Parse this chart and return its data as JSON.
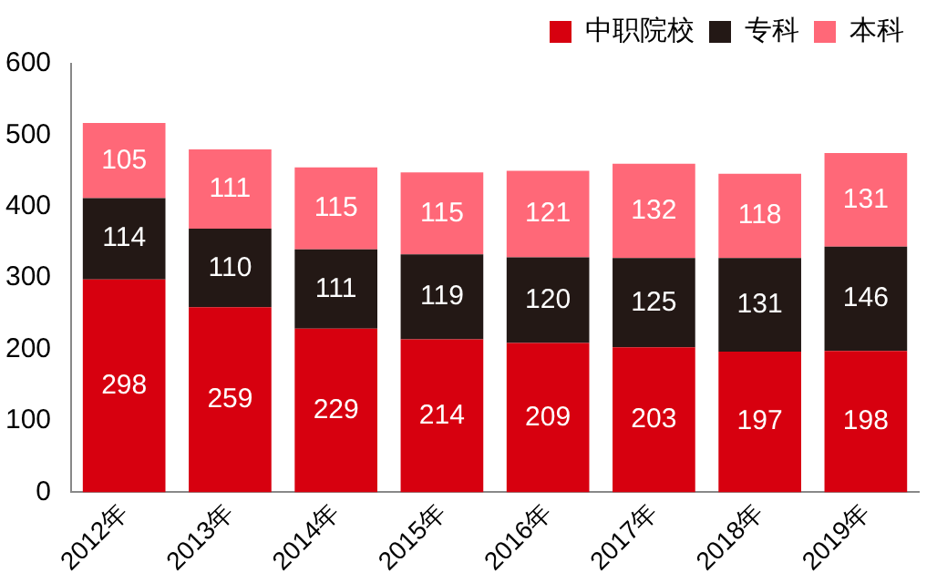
{
  "chart_data": {
    "type": "bar",
    "stacked": true,
    "categories": [
      "2012年",
      "2013年",
      "2014年",
      "2015年",
      "2016年",
      "2017年",
      "2018年",
      "2019年"
    ],
    "series": [
      {
        "name": "中职院校",
        "color": "#d7000f",
        "values": [
          298,
          259,
          229,
          214,
          209,
          203,
          197,
          198
        ]
      },
      {
        "name": "专科",
        "color": "#231815",
        "values": [
          114,
          110,
          111,
          119,
          120,
          125,
          131,
          146
        ]
      },
      {
        "name": "本科",
        "color": "#ff6878",
        "values": [
          105,
          111,
          115,
          115,
          121,
          132,
          118,
          131
        ]
      }
    ],
    "ylim": [
      0,
      600
    ],
    "yticks": [
      0,
      100,
      200,
      300,
      400,
      500,
      600
    ],
    "grid": false,
    "legend": "top",
    "data_labels": true
  }
}
